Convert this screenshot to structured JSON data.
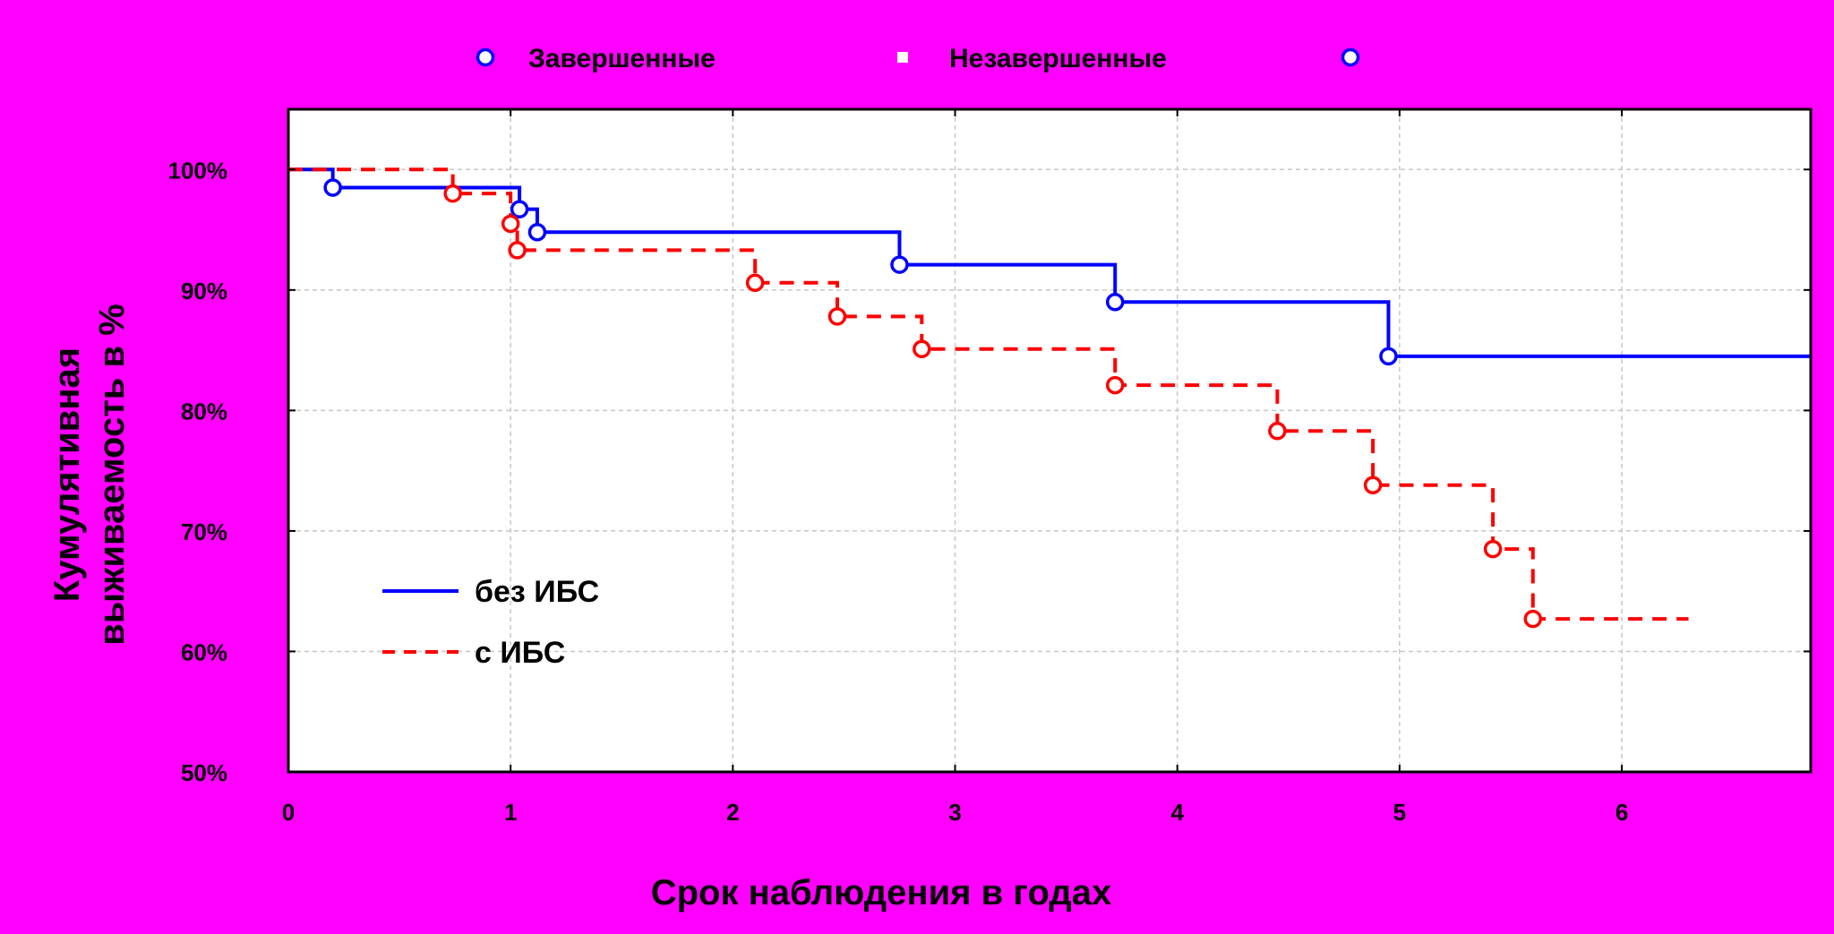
{
  "chart_data": {
    "type": "line",
    "subtype": "kaplan-meier step",
    "background_color": "#FF00FF",
    "plot_background_color": "#FFFFFF",
    "xlabel": "Срок наблюдения в годах",
    "ylabel_lines": [
      "Кумулятивная",
      "выживаемость в %"
    ],
    "xlim": [
      0,
      6.85
    ],
    "ylim": [
      50,
      105
    ],
    "x_ticks": [
      0,
      1,
      2,
      3,
      4,
      5,
      6
    ],
    "x_tick_labels": [
      "0",
      "1",
      "2",
      "3",
      "4",
      "5",
      "6"
    ],
    "y_ticks": [
      50,
      60,
      70,
      80,
      90,
      100
    ],
    "y_tick_labels": [
      "50%",
      "60%",
      "70%",
      "80%",
      "90%",
      "100%"
    ],
    "grid": true,
    "marker_legend": {
      "position": "top",
      "items": [
        {
          "label": "Завершенные",
          "marker": "circle-icon",
          "color": "#0000FF"
        },
        {
          "label": "Незавершенные",
          "marker": "square-icon",
          "color": "#FFFFFF"
        },
        {
          "label": "",
          "marker": "circle-icon",
          "color": "#0000FF"
        }
      ]
    },
    "series": [
      {
        "name": "без ИБС",
        "color": "#0000FF",
        "line_style": "solid",
        "steps": [
          {
            "x": 0,
            "y": 100
          },
          {
            "x": 0.2,
            "y": 98.5
          },
          {
            "x": 1.04,
            "y": 96.7
          },
          {
            "x": 1.12,
            "y": 94.8
          },
          {
            "x": 2.75,
            "y": 92.1
          },
          {
            "x": 3.72,
            "y": 89
          },
          {
            "x": 4.95,
            "y": 84.5
          }
        ],
        "end_x": 6.85,
        "completed_events": [
          {
            "x": 0.2,
            "y": 98.5
          },
          {
            "x": 1.04,
            "y": 96.7
          },
          {
            "x": 1.12,
            "y": 94.8
          },
          {
            "x": 2.75,
            "y": 92.1
          },
          {
            "x": 3.72,
            "y": 89
          },
          {
            "x": 4.95,
            "y": 84.5
          }
        ]
      },
      {
        "name": "с ИБС",
        "color": "#FF0000",
        "line_style": "dashed",
        "steps": [
          {
            "x": 0,
            "y": 100
          },
          {
            "x": 0.74,
            "y": 98
          },
          {
            "x": 1.0,
            "y": 95.5
          },
          {
            "x": 1.03,
            "y": 93.3
          },
          {
            "x": 2.1,
            "y": 90.6
          },
          {
            "x": 2.47,
            "y": 87.8
          },
          {
            "x": 2.85,
            "y": 85.1
          },
          {
            "x": 3.72,
            "y": 82.1
          },
          {
            "x": 4.45,
            "y": 78.3
          },
          {
            "x": 4.88,
            "y": 73.8
          },
          {
            "x": 5.42,
            "y": 68.5
          },
          {
            "x": 5.6,
            "y": 62.7
          }
        ],
        "end_x": 6.3,
        "completed_events": [
          {
            "x": 0.74,
            "y": 98
          },
          {
            "x": 1.0,
            "y": 95.5
          },
          {
            "x": 1.03,
            "y": 93.3
          },
          {
            "x": 2.1,
            "y": 90.6
          },
          {
            "x": 2.47,
            "y": 87.8
          },
          {
            "x": 2.85,
            "y": 85.1
          },
          {
            "x": 3.72,
            "y": 82.1
          },
          {
            "x": 4.45,
            "y": 78.3
          },
          {
            "x": 4.88,
            "y": 73.8
          },
          {
            "x": 5.42,
            "y": 68.5
          },
          {
            "x": 5.6,
            "y": 62.7
          }
        ]
      }
    ]
  }
}
